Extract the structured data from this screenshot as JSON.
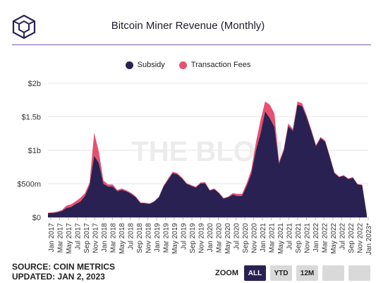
{
  "header": {
    "title": "Bitcoin Miner Revenue (Monthly)",
    "watermark": "THE BLOCK"
  },
  "colors": {
    "subsidy": "#2a2153",
    "fees": "#e8506f",
    "rule": "#7a58a6"
  },
  "footer": {
    "source": "SOURCE: COIN METRICS",
    "updated": "UPDATED: JAN 2, 2023"
  },
  "zoom": {
    "label": "ZOOM",
    "buttons": [
      "ALL",
      "YTD",
      "12M",
      "",
      ""
    ],
    "active": "ALL"
  },
  "chart_data": {
    "type": "area",
    "stacked": true,
    "ylim": [
      0,
      2000000000
    ],
    "y_ticks": [
      {
        "value": 0,
        "label": "$0"
      },
      {
        "value": 500000000,
        "label": "$500m"
      },
      {
        "value": 1000000000,
        "label": "$1b"
      },
      {
        "value": 1500000000,
        "label": "$1.5b"
      },
      {
        "value": 2000000000,
        "label": "$2b"
      }
    ],
    "x_tick_labels": [
      "Jan 2017",
      "Mar 2017",
      "May 2017",
      "Jul 2017",
      "Sep 2017",
      "Nov 2017",
      "Jan 2018",
      "Mar 2018",
      "May 2018",
      "Jul 2018",
      "Sep 2018",
      "Nov 2018",
      "Jan 2019",
      "Mar 2019",
      "May 2019",
      "Jul 2019",
      "Sep 2019",
      "Nov 2019",
      "Jan 2020",
      "Mar 2020",
      "May 2020",
      "Jul 2020",
      "Sep 2020",
      "Nov 2020",
      "Jan 2021",
      "Mar 2021",
      "May 2021",
      "Jul 2021",
      "Sep 2021",
      "Nov 2021",
      "Jan 2022",
      "Mar 2022",
      "May 2022",
      "Jul 2022",
      "Sep 2022",
      "Nov 2022",
      "Jan 2023*"
    ],
    "legend": [
      "Subsidy",
      "Transaction Fees"
    ],
    "grid": true,
    "series": [
      {
        "name": "Subsidy",
        "values": [
          62,
          66,
          75,
          95,
          140,
          155,
          200,
          235,
          320,
          480,
          920,
          810,
          500,
          460,
          460,
          390,
          410,
          385,
          350,
          300,
          215,
          210,
          200,
          235,
          300,
          460,
          560,
          660,
          640,
          580,
          500,
          470,
          445,
          505,
          510,
          400,
          420,
          360,
          280,
          300,
          340,
          320,
          320,
          470,
          650,
          1000,
          1250,
          1580,
          1480,
          1350,
          800,
          990,
          1360,
          1290,
          1680,
          1660,
          1490,
          1280,
          1060,
          1180,
          1130,
          900,
          660,
          600,
          620,
          570,
          590,
          490,
          480,
          40
        ]
      },
      {
        "name": "Transaction Fees",
        "values": [
          8,
          9,
          12,
          15,
          35,
          40,
          40,
          55,
          40,
          40,
          340,
          170,
          50,
          30,
          30,
          20,
          20,
          18,
          15,
          12,
          8,
          8,
          8,
          8,
          8,
          10,
          20,
          20,
          20,
          15,
          12,
          12,
          10,
          15,
          15,
          10,
          10,
          10,
          8,
          10,
          20,
          30,
          30,
          40,
          60,
          120,
          200,
          150,
          200,
          200,
          30,
          20,
          40,
          30,
          50,
          40,
          30,
          25,
          20,
          20,
          15,
          12,
          10,
          10,
          10,
          10,
          10,
          8,
          8,
          2
        ]
      }
    ]
  }
}
